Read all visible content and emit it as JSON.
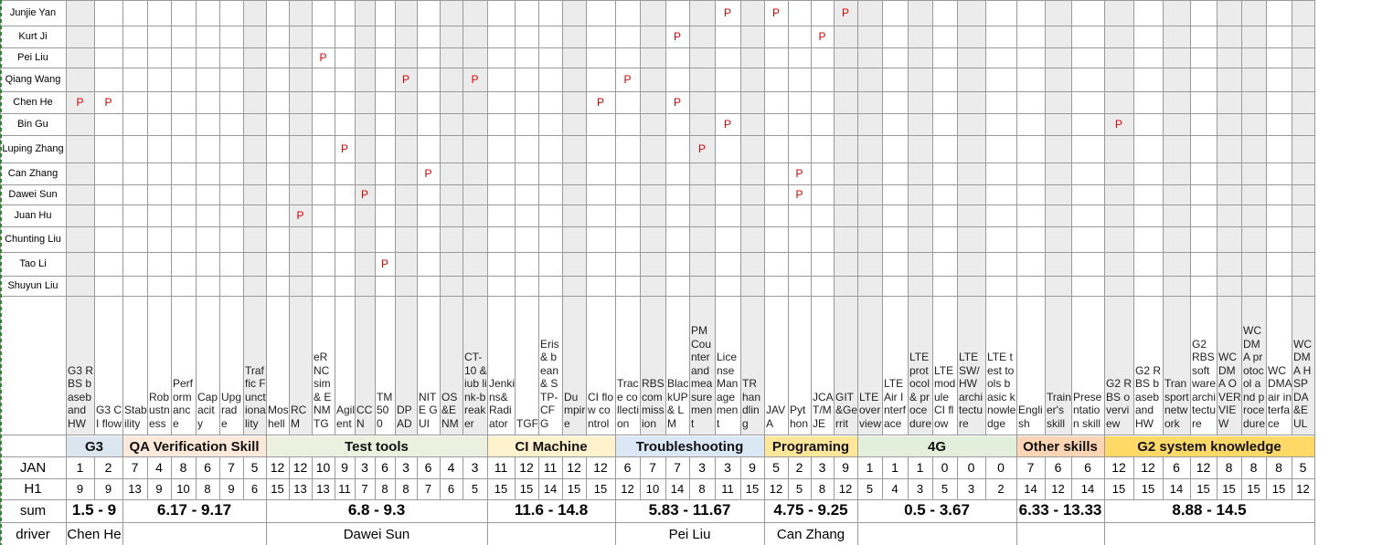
{
  "people": [
    "Junjie Yan",
    "Kurt Ji",
    "Pei Liu",
    "Qiang Wang",
    "Chen He",
    "Bin Gu",
    "Luping Zhang",
    "Can Zhang",
    "Dawei Sun",
    "Juan Hu",
    "Chunting Liu",
    "Tao Li",
    "Shuyun Liu"
  ],
  "mark_label": "P",
  "marks": [
    [
      27,
      29,
      32
    ],
    [
      25,
      31
    ],
    [
      10
    ],
    [
      14,
      17,
      23
    ],
    [
      0,
      1,
      22,
      25
    ],
    [
      27,
      42
    ],
    [
      11,
      26
    ],
    [
      15,
      30
    ],
    [
      12,
      30
    ],
    [
      9
    ],
    [],
    [
      13
    ],
    []
  ],
  "skills": [
    "G3 RBS baseband HW",
    "G3 CI flow",
    "Stability",
    "Robustness",
    "Performance",
    "Capacity",
    "Upgrade",
    "Traffic Functionality",
    "Moshell",
    "RCM",
    "eRNCsim & ENMTG",
    "Agilent",
    "CCN",
    "TM500",
    "DPAD",
    "NITE GUI",
    "OS&ENM",
    "CT-10 & iub link-breaker",
    "Jenkins&Radiator",
    "TGF",
    "Eris & bean & STP-CFG",
    "Dumpire",
    "CI flow control",
    "Trace collection",
    "RBS commission",
    "BlackUP & LM",
    "PM Counter and measurement",
    "License Management",
    "TR handling",
    "JAVA",
    "Python",
    "JCAT/MJE",
    "GIT&Gerrit",
    "LTE overview",
    "LTE Air Interface",
    "LTE protocol & procedure",
    "LTE module CI flow",
    "LTE SW/HW architecture",
    "LTE test tools basic knowledge",
    "English",
    "Trainer's skill",
    "Presentation skill",
    "G2 RBS overview",
    "G2 RBS baseband HW",
    "Transport network",
    "G2 RBS software architecture",
    "WCDMA OVERVIEW",
    "WCDMA protocol and procedure",
    "WCDMA air interface",
    "WCDMA HSPDA&EUL"
  ],
  "categories": [
    {
      "name": "G3",
      "color": "#dce6f1"
    },
    {
      "name": "QA Verification Skill",
      "color": "#fde9d9"
    },
    {
      "name": "Test tools",
      "color": "#ebf1de"
    },
    {
      "name": "CI Machine",
      "color": "#fff2cc"
    },
    {
      "name": "Troubleshooting",
      "color": "#dae7f5"
    },
    {
      "name": "Programing",
      "color": "#ffe699"
    },
    {
      "name": "4G",
      "color": "#e2efda"
    },
    {
      "name": "Other skills",
      "color": "#fcd5b4"
    },
    {
      "name": "G2 system knowledge",
      "color": "#ffd966"
    }
  ],
  "row_labels": {
    "jan": "JAN",
    "h1": "H1",
    "sum": "sum",
    "driver": "driver"
  },
  "jan": [
    1,
    2,
    7,
    4,
    8,
    6,
    7,
    5,
    12,
    12,
    10,
    9,
    3,
    6,
    3,
    6,
    4,
    3,
    11,
    12,
    11,
    12,
    12,
    6,
    7,
    7,
    3,
    3,
    9,
    5,
    2,
    3,
    9,
    1,
    1,
    1,
    0,
    0,
    0,
    7,
    6,
    6,
    12,
    12,
    6,
    12,
    8,
    8,
    8,
    5
  ],
  "h1": [
    9,
    9,
    13,
    9,
    10,
    8,
    9,
    6,
    15,
    13,
    13,
    11,
    7,
    8,
    8,
    7,
    6,
    5,
    15,
    15,
    14,
    15,
    15,
    12,
    10,
    14,
    8,
    11,
    15,
    12,
    5,
    8,
    12,
    5,
    4,
    3,
    5,
    3,
    2,
    14,
    12,
    14,
    15,
    15,
    14,
    15,
    15,
    15,
    15,
    12
  ],
  "sums": [
    "1.5 - 9",
    "6.17 - 9.17",
    "6.8 - 9.3",
    "11.6 - 14.8",
    "5.83 - 11.67",
    "4.75 - 9.25",
    "0.5 - 3.67",
    "6.33 - 13.33",
    "8.88 - 14.5"
  ],
  "drivers": [
    "Chen He",
    "",
    "Dawei Sun",
    "",
    "Pei Liu",
    "Can Zhang",
    "",
    "",
    ""
  ]
}
